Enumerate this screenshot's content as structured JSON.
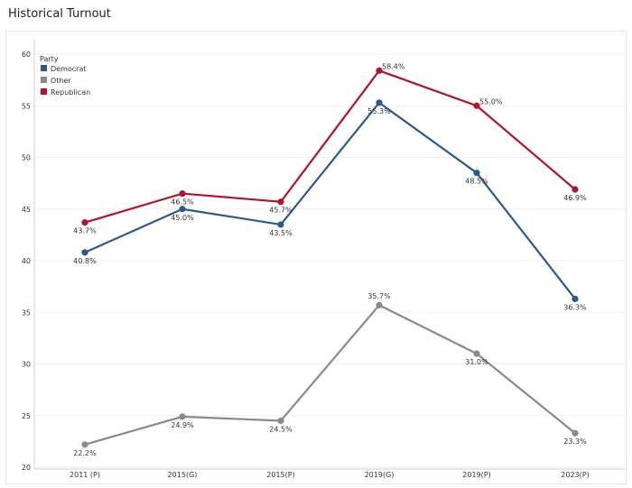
{
  "page": {
    "title": "Historical Turnout"
  },
  "chart_data": {
    "type": "line",
    "title": "Historical Turnout",
    "xlabel": "",
    "ylabel": "",
    "categories": [
      "2011 (P)",
      "2015(G)",
      "2015(P)",
      "2019(G)",
      "2019(P)",
      "2023(P)"
    ],
    "ylim": [
      20,
      60
    ],
    "yticks": [
      20,
      25,
      30,
      35,
      40,
      45,
      50,
      55,
      60
    ],
    "grid": true,
    "legend": {
      "title": "Party",
      "placement": "top-left"
    },
    "series": [
      {
        "name": "Democrat",
        "color": "#2b5a8c",
        "values": [
          40.8,
          45.0,
          43.5,
          55.3,
          48.5,
          36.3
        ],
        "labels": [
          "40.8%",
          "45.0%",
          "43.5%",
          "55.3%",
          "48.5%",
          "36.3%"
        ]
      },
      {
        "name": "Other",
        "color": "#8a8a8a",
        "values": [
          22.2,
          24.9,
          24.5,
          35.7,
          31.0,
          23.3
        ],
        "labels": [
          "22.2%",
          "24.9%",
          "24.5%",
          "35.7%",
          "31.0%",
          "23.3%"
        ]
      },
      {
        "name": "Republican",
        "color": "#b0152a",
        "values": [
          43.7,
          46.5,
          45.7,
          58.4,
          55.0,
          46.9
        ],
        "labels": [
          "43.7%",
          "46.5%",
          "45.7%",
          "58.4%",
          "55.0%",
          "46.9%"
        ]
      }
    ]
  }
}
